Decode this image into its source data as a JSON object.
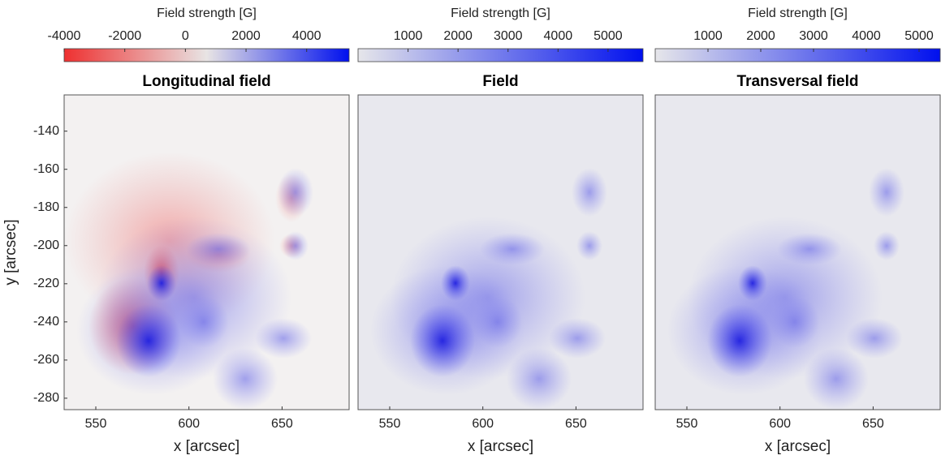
{
  "chart_data": [
    {
      "type": "heatmap",
      "title": "Longitudinal field",
      "xlabel": "x [arcsec]",
      "ylabel": "y [arcsec]",
      "xlim": [
        533,
        686
      ],
      "xticks": [
        550,
        600,
        650
      ],
      "ylim": [
        -286,
        -121
      ],
      "yticks": [
        -280,
        -260,
        -240,
        -220,
        -200,
        -180,
        -160,
        -140
      ],
      "colorbar_label": "Field strength [G]",
      "clim": [
        -4000,
        5400
      ],
      "cticks": [
        -4000,
        -2000,
        0,
        2000,
        4000
      ],
      "colormap": [
        "#ee3030",
        "#e8e4e4",
        "#0010ee"
      ],
      "background": "#f3f1f1"
    },
    {
      "type": "heatmap",
      "title": "Field",
      "xlabel": "x [arcsec]",
      "xlim": [
        533,
        686
      ],
      "xticks": [
        550,
        600,
        650
      ],
      "ylim": [
        -286,
        -121
      ],
      "colorbar_label": "Field strength [G]",
      "clim": [
        0,
        5700
      ],
      "cticks": [
        1000,
        2000,
        3000,
        4000,
        5000
      ],
      "colormap": [
        "#e6e6ea",
        "#0010ee"
      ],
      "background": "#e8e8ee"
    },
    {
      "type": "heatmap",
      "title": "Transversal field",
      "xlabel": "x [arcsec]",
      "xlim": [
        533,
        686
      ],
      "xticks": [
        550,
        600,
        650
      ],
      "ylim": [
        -286,
        -121
      ],
      "colorbar_label": "Field strength [G]",
      "clim": [
        0,
        5400
      ],
      "cticks": [
        1000,
        2000,
        3000,
        4000,
        5000
      ],
      "colormap": [
        "#e6e6ea",
        "#0010ee"
      ],
      "background": "#e8e8ee"
    }
  ]
}
